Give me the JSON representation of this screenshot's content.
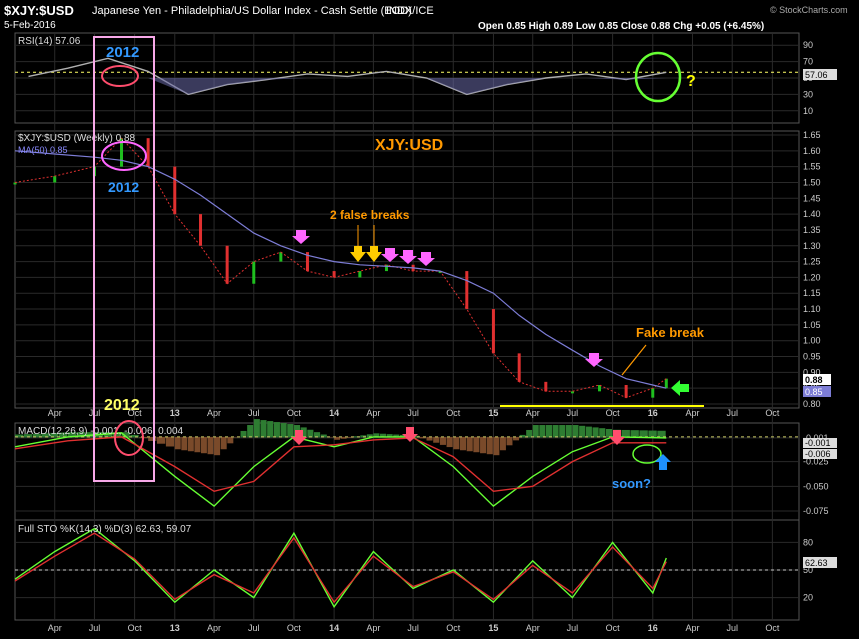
{
  "header": {
    "symbol": "$XJY:$USD",
    "description": "Japanese Yen - Philadelphia/US Dollar Index - Cash Settle (EOD)",
    "exchange": "INDX/ICE",
    "date": "5-Feb-2016",
    "ohlc": "Open 0.85  High 0.89  Low 0.85  Close 0.88  Chg +0.05 (+6.45%)",
    "credit": "© StockCharts.com"
  },
  "colors": {
    "background": "#000000",
    "grid": "#2a2a2a",
    "price_up": "#1fbf1f",
    "price_down": "#e03030",
    "ma": "#7d7dd6",
    "rsi": "#b0b0b0",
    "annotation_orange": "#ff9900",
    "annotation_pink": "#ff66ff",
    "annotation_box": "#f7a8e8",
    "annotation_green": "#66ff33",
    "annotation_blue": "#1e90ff",
    "annotation_yellow": "#ffff00"
  },
  "x_labels": [
    "Apr",
    "Jul",
    "Oct",
    "13",
    "Apr",
    "Jul",
    "Oct",
    "14",
    "Apr",
    "Jul",
    "Oct",
    "15",
    "Apr",
    "Jul",
    "Oct",
    "16",
    "Apr",
    "Jul",
    "Oct"
  ],
  "x_label_bold": [
    "13",
    "14",
    "15",
    "16"
  ],
  "panels": {
    "rsi": {
      "label": "RSI(14) 57.06",
      "value_box": "57.06",
      "ticks": [
        "90",
        "70",
        "50",
        "30",
        "10"
      ]
    },
    "price": {
      "label": "$XJY:$USD (Weekly) 0.88",
      "ma_label": "MA(50) 0.85",
      "value_box_1": "0.88",
      "value_box_2": "0.85",
      "ticks": [
        "1.65",
        "1.60",
        "1.55",
        "1.50",
        "1.45",
        "1.40",
        "1.35",
        "1.30",
        "1.25",
        "1.20",
        "1.15",
        "1.10",
        "1.05",
        "1.00",
        "0.95",
        "0.90",
        "0.85",
        "0.80"
      ]
    },
    "macd": {
      "label": "MACD(12,26,9) -0.001, -0.006, 0.004",
      "value_box_1": "-0.001",
      "value_box_2": "-0.006",
      "ticks": [
        "-0.001",
        "-0.025",
        "-0.050",
        "-0.075"
      ]
    },
    "sto": {
      "label": "Full STO %K(14,3) %D(3) 62.63, 59.07",
      "value_box": "62.63",
      "ticks": [
        "80",
        "50",
        "20"
      ]
    }
  },
  "annotations": {
    "title": "XJY:USD",
    "false_breaks": "2 false breaks",
    "fake_break": "Fake  break",
    "year_top": "2012",
    "year_mid": "2012",
    "year_bottom": "2012",
    "question": "?",
    "soon": "soon?"
  },
  "chart_data": [
    {
      "type": "line",
      "title": "RSI(14) 57.06",
      "x": [
        "2012-02",
        "2012-05",
        "2012-08",
        "2012-11",
        "2013-02",
        "2013-05",
        "2013-08",
        "2013-11",
        "2014-02",
        "2014-05",
        "2014-08",
        "2014-11",
        "2015-02",
        "2015-05",
        "2015-08",
        "2015-11",
        "2016-02"
      ],
      "series": [
        {
          "name": "RSI(14)",
          "values": [
            52,
            62,
            74,
            58,
            30,
            42,
            48,
            55,
            52,
            58,
            50,
            30,
            42,
            50,
            55,
            48,
            57
          ]
        }
      ],
      "ylim": [
        0,
        100
      ]
    },
    {
      "type": "line",
      "title": "$XJY:$USD (Weekly) 0.88",
      "x": [
        "2012-01",
        "2012-04",
        "2012-07",
        "2012-09",
        "2012-11",
        "2013-01",
        "2013-03",
        "2013-05",
        "2013-07",
        "2013-09",
        "2013-11",
        "2014-01",
        "2014-03",
        "2014-05",
        "2014-07",
        "2014-09",
        "2014-11",
        "2015-01",
        "2015-03",
        "2015-05",
        "2015-07",
        "2015-09",
        "2015-11",
        "2016-01",
        "2016-02"
      ],
      "series": [
        {
          "name": "$XJY:$USD (Weekly)",
          "values": [
            1.5,
            1.52,
            1.55,
            1.64,
            1.55,
            1.4,
            1.3,
            1.18,
            1.25,
            1.28,
            1.22,
            1.2,
            1.22,
            1.24,
            1.22,
            1.22,
            1.1,
            0.96,
            0.87,
            0.84,
            0.84,
            0.86,
            0.82,
            0.85,
            0.88
          ]
        },
        {
          "name": "MA(50)",
          "values": [
            1.6,
            1.59,
            1.58,
            1.57,
            1.55,
            1.51,
            1.46,
            1.4,
            1.34,
            1.3,
            1.27,
            1.25,
            1.24,
            1.235,
            1.23,
            1.22,
            1.19,
            1.15,
            1.08,
            1.02,
            0.97,
            0.92,
            0.88,
            0.86,
            0.85
          ]
        }
      ],
      "ylim": [
        0.8,
        1.65
      ]
    },
    {
      "type": "line",
      "title": "MACD(12,26,9) -0.001, -0.006, 0.004",
      "x": [
        "2012-01",
        "2012-05",
        "2012-09",
        "2013-01",
        "2013-04",
        "2013-07",
        "2013-10",
        "2014-01",
        "2014-04",
        "2014-07",
        "2014-10",
        "2015-01",
        "2015-04",
        "2015-07",
        "2015-10",
        "2016-02"
      ],
      "series": [
        {
          "name": "MACD",
          "values": [
            -0.01,
            0.0,
            0.004,
            -0.04,
            -0.07,
            -0.03,
            0.0,
            -0.01,
            0.0,
            0.0,
            -0.03,
            -0.07,
            -0.04,
            -0.015,
            0.0,
            -0.001
          ]
        },
        {
          "name": "Signal",
          "values": [
            -0.012,
            -0.004,
            0.0,
            -0.03,
            -0.055,
            -0.045,
            -0.01,
            -0.008,
            -0.003,
            -0.001,
            -0.02,
            -0.055,
            -0.05,
            -0.025,
            -0.006,
            -0.006
          ]
        }
      ],
      "ylim": [
        -0.08,
        0.01
      ]
    },
    {
      "type": "line",
      "title": "Full STO %K(14,3) %D(3) 62.63, 59.07",
      "x": [
        "2012-01",
        "2012-04",
        "2012-07",
        "2012-10",
        "2013-01",
        "2013-04",
        "2013-07",
        "2013-10",
        "2014-01",
        "2014-04",
        "2014-07",
        "2014-10",
        "2015-01",
        "2015-04",
        "2015-07",
        "2015-10",
        "2016-01",
        "2016-02"
      ],
      "series": [
        {
          "name": "%K",
          "values": [
            40,
            70,
            95,
            60,
            15,
            50,
            20,
            90,
            10,
            70,
            30,
            50,
            15,
            60,
            20,
            80,
            25,
            63
          ]
        },
        {
          "name": "%D",
          "values": [
            38,
            65,
            90,
            62,
            18,
            45,
            25,
            85,
            15,
            65,
            32,
            48,
            18,
            55,
            25,
            75,
            30,
            59
          ]
        }
      ],
      "ylim": [
        0,
        100
      ]
    }
  ]
}
